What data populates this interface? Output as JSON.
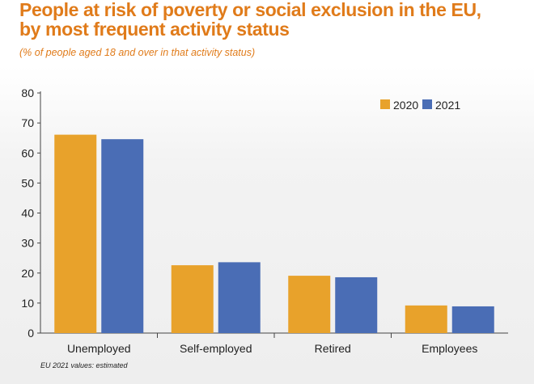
{
  "title_line1": "People at risk of poverty or social exclusion in the EU,",
  "title_line2": "by most frequent activity status",
  "subtitle": "(% of people aged 18 and over in that activity status)",
  "footnote": "EU 2021 values: estimated",
  "colors": {
    "title": "#e07b1a",
    "series_2020": "#e8a22b",
    "series_2021": "#4a6db5"
  },
  "chart_data": {
    "type": "bar",
    "categories": [
      "Unemployed",
      "Self-employed",
      "Retired",
      "Employees"
    ],
    "series": [
      {
        "name": "2020",
        "values": [
          66.1,
          22.6,
          19.1,
          9.2
        ],
        "color": "#e8a22b"
      },
      {
        "name": "2021",
        "values": [
          64.6,
          23.6,
          18.6,
          8.9
        ],
        "color": "#4a6db5"
      }
    ],
    "ylim": [
      0,
      80
    ],
    "yticks": [
      0,
      10,
      20,
      30,
      40,
      50,
      60,
      70,
      80
    ],
    "legend_position": "top-right",
    "grid": false
  }
}
